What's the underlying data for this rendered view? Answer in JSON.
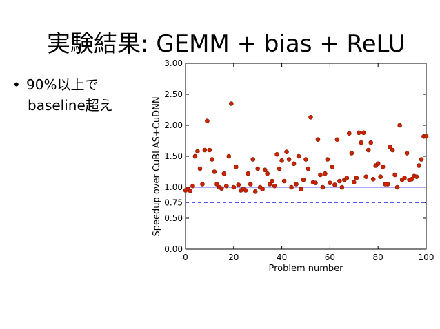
{
  "slide": {
    "title": "実験結果: GEMM + bias + ReLU",
    "bullet_marker": "•",
    "bullet_line1": "90%以上で",
    "bullet_line2": "baseline超え"
  },
  "chart_data": {
    "type": "scatter",
    "xlabel": "Problem number",
    "ylabel": "Speedup over CuBLAS+CuDNN",
    "xlim": [
      0,
      100
    ],
    "ylim": [
      0,
      3.0
    ],
    "xticks": [
      "0",
      "20",
      "40",
      "60",
      "80",
      "100"
    ],
    "yticks": [
      "0.00",
      "0.50",
      "0.75",
      "1.00",
      "1.50",
      "2.00",
      "2.50",
      "3.00"
    ],
    "grid": false,
    "reference_lines": [
      {
        "y": 1.0,
        "style": "solid",
        "color": "#5555ff"
      },
      {
        "y": 0.75,
        "style": "dashed",
        "color": "#5555ff"
      }
    ],
    "marker_color": "#cc2200",
    "x": [
      0,
      1,
      2,
      3,
      4,
      5,
      6,
      7,
      8,
      9,
      10,
      11,
      12,
      13,
      14,
      15,
      16,
      17,
      18,
      19,
      20,
      21,
      22,
      23,
      24,
      25,
      26,
      27,
      28,
      29,
      30,
      31,
      32,
      33,
      34,
      35,
      36,
      37,
      38,
      39,
      40,
      41,
      42,
      43,
      44,
      45,
      46,
      47,
      48,
      49,
      50,
      51,
      52,
      53,
      54,
      55,
      56,
      57,
      58,
      59,
      60,
      61,
      62,
      63,
      64,
      65,
      66,
      67,
      68,
      69,
      70,
      71,
      72,
      73,
      74,
      75,
      76,
      77,
      78,
      79,
      80,
      81,
      82,
      83,
      84,
      85,
      86,
      87,
      88,
      89,
      90,
      91,
      92,
      93,
      94,
      95,
      96,
      97,
      98,
      99,
      100
    ],
    "y": [
      0.95,
      0.97,
      0.94,
      1.02,
      1.5,
      1.58,
      1.3,
      1.05,
      1.6,
      2.07,
      1.6,
      1.45,
      1.25,
      1.05,
      1.0,
      0.98,
      1.22,
      1.02,
      1.5,
      2.35,
      1.0,
      1.33,
      1.04,
      0.95,
      0.97,
      0.95,
      1.22,
      1.05,
      1.45,
      0.93,
      1.3,
      1.0,
      0.97,
      1.28,
      1.22,
      1.05,
      1.1,
      1.02,
      1.53,
      1.3,
      1.43,
      1.1,
      1.57,
      1.45,
      1.0,
      1.38,
      1.05,
      1.5,
      0.97,
      1.12,
      1.45,
      1.3,
      2.13,
      1.08,
      1.07,
      1.77,
      1.2,
      1.0,
      1.22,
      1.45,
      1.07,
      1.33,
      1.04,
      1.77,
      1.1,
      1.0,
      1.12,
      1.15,
      1.87,
      1.55,
      1.08,
      1.15,
      1.88,
      1.72,
      1.88,
      1.17,
      1.6,
      1.72,
      1.13,
      1.35,
      1.38,
      1.17,
      1.33,
      1.05,
      1.05,
      1.65,
      1.6,
      1.2,
      1.0,
      2.0,
      1.12,
      1.15,
      1.55,
      1.12,
      1.13,
      1.18,
      1.17,
      1.35,
      1.45,
      1.82,
      1.82
    ]
  }
}
